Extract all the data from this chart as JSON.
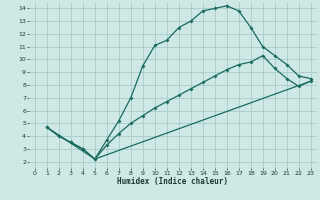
{
  "xlabel": "Humidex (Indice chaleur)",
  "xlim": [
    -0.5,
    23.5
  ],
  "ylim": [
    1.5,
    14.5
  ],
  "xticks": [
    0,
    1,
    2,
    3,
    4,
    5,
    6,
    7,
    8,
    9,
    10,
    11,
    12,
    13,
    14,
    15,
    16,
    17,
    18,
    19,
    20,
    21,
    22,
    23
  ],
  "yticks": [
    2,
    3,
    4,
    5,
    6,
    7,
    8,
    9,
    10,
    11,
    12,
    13,
    14
  ],
  "bg_color": "#cde8e5",
  "grid_color": "#a8ccc9",
  "line_color": "#1a6b60",
  "line1_x": [
    1,
    2,
    3,
    4,
    5,
    6,
    7,
    8,
    9,
    10,
    11,
    12,
    13,
    14,
    15,
    16,
    17,
    18,
    19,
    20,
    21,
    22,
    23
  ],
  "line1_y": [
    4.7,
    4.0,
    3.5,
    3.0,
    2.2,
    3.7,
    5.2,
    7.0,
    9.5,
    11.1,
    11.5,
    12.5,
    13.0,
    13.8,
    14.0,
    14.2,
    13.8,
    12.5,
    11.0,
    10.3,
    9.6,
    8.7,
    8.5
  ],
  "line2_x": [
    1,
    2,
    3,
    4,
    5,
    6,
    7,
    8,
    9,
    10,
    11,
    12,
    13,
    14,
    15,
    16,
    17,
    18,
    19,
    20,
    21,
    22,
    23
  ],
  "line2_y": [
    4.7,
    4.0,
    3.5,
    3.0,
    2.2,
    3.3,
    4.2,
    5.0,
    5.6,
    6.2,
    6.7,
    7.2,
    7.7,
    8.2,
    8.7,
    9.2,
    9.6,
    9.8,
    10.3,
    9.3,
    8.5,
    7.9,
    8.3
  ],
  "line3_x": [
    1,
    5,
    23
  ],
  "line3_y": [
    4.7,
    2.2,
    8.3
  ]
}
